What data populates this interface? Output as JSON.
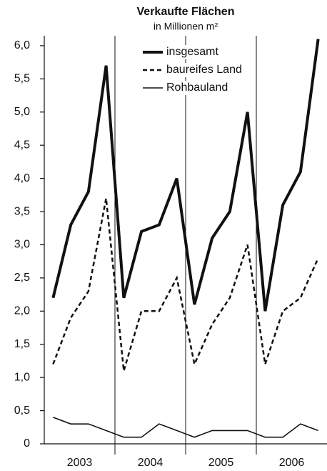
{
  "chart_data": {
    "type": "line",
    "title": "Verkaufte Flächen",
    "subtitle": "in Millionen m²",
    "categories": [
      null,
      null,
      null,
      null,
      null,
      null,
      null,
      null,
      null,
      null,
      null,
      null,
      null,
      null,
      null,
      null
    ],
    "year_labels": [
      "2003",
      "2004",
      "2005",
      "2006"
    ],
    "series": [
      {
        "name": "insgesamt",
        "color": "#111111",
        "width": 4,
        "dash": "none",
        "values": [
          2.2,
          3.3,
          3.8,
          5.7,
          2.2,
          3.2,
          3.3,
          4.0,
          2.1,
          3.1,
          3.5,
          5.0,
          2.0,
          3.6,
          4.1,
          6.1
        ]
      },
      {
        "name": "baureifes Land",
        "color": "#111111",
        "width": 2.5,
        "dash": "6 4",
        "values": [
          1.2,
          1.9,
          2.3,
          3.7,
          1.1,
          2.0,
          2.0,
          2.5,
          1.2,
          1.8,
          2.2,
          3.0,
          1.2,
          2.0,
          2.2,
          2.8
        ]
      },
      {
        "name": "Rohbauland",
        "color": "#111111",
        "width": 1.6,
        "dash": "none",
        "values": [
          0.4,
          0.3,
          0.3,
          0.2,
          0.1,
          0.1,
          0.3,
          0.2,
          0.1,
          0.2,
          0.2,
          0.2,
          0.1,
          0.1,
          0.3,
          0.2
        ]
      }
    ],
    "ylim": [
      0,
      6.15
    ],
    "yticks": [
      0,
      {
        "value": 0.5,
        "label": "0,5"
      },
      {
        "value": 1.0,
        "label": "1,0"
      },
      {
        "value": 1.5,
        "label": "1,5"
      },
      {
        "value": 2.0,
        "label": "2,0"
      },
      {
        "value": 2.5,
        "label": "2,5"
      },
      {
        "value": 3.0,
        "label": "3,0"
      },
      {
        "value": 3.5,
        "label": "3,5"
      },
      {
        "value": 4.0,
        "label": "4,0"
      },
      {
        "value": 4.5,
        "label": "4,5"
      },
      {
        "value": 5.0,
        "label": "5,0"
      },
      {
        "value": 5.5,
        "label": "5,5"
      },
      {
        "value": 6.0,
        "label": "6,0"
      }
    ],
    "legend": "top"
  }
}
